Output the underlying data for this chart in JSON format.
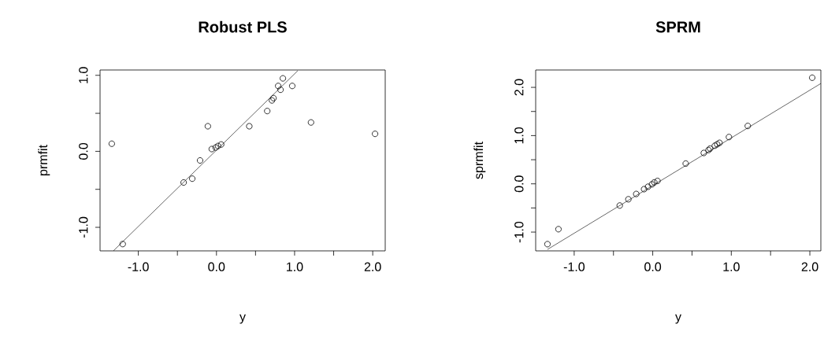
{
  "chart_data": [
    {
      "type": "scatter",
      "title": "Robust PLS",
      "xlabel": "y",
      "ylabel": "prmfit",
      "xlim": [
        -1.49,
        2.16
      ],
      "ylim": [
        -1.31,
        1.07
      ],
      "xticks": [
        {
          "value": -1.0,
          "label": "-1.0"
        },
        {
          "value": -0.5,
          "label": null
        },
        {
          "value": 0.0,
          "label": "0.0"
        },
        {
          "value": 0.5,
          "label": null
        },
        {
          "value": 1.0,
          "label": "1.0"
        },
        {
          "value": 1.5,
          "label": null
        },
        {
          "value": 2.0,
          "label": "2.0"
        }
      ],
      "yticks": [
        {
          "value": -1.0,
          "label": "-1.0"
        },
        {
          "value": -0.5,
          "label": null
        },
        {
          "value": 0.0,
          "label": "0.0"
        },
        {
          "value": 0.5,
          "label": null
        },
        {
          "value": 1.0,
          "label": "1.0"
        }
      ],
      "series": [
        {
          "color": "#000000",
          "marker": "circle",
          "x": [
            -1.34,
            -1.2,
            -0.42,
            -0.31,
            -0.21,
            -0.11,
            -0.06,
            -0.01,
            0.02,
            0.06,
            0.42,
            0.65,
            0.71,
            0.73,
            0.79,
            0.82,
            0.85,
            0.97,
            1.21,
            2.03
          ],
          "values": [
            0.1,
            -1.22,
            -0.41,
            -0.36,
            -0.12,
            0.33,
            0.03,
            0.05,
            0.07,
            0.09,
            0.33,
            0.53,
            0.67,
            0.7,
            0.86,
            0.81,
            0.96,
            0.86,
            0.38,
            0.23
          ]
        },
        {
          "type": "line",
          "color": "#000000",
          "x": [
            -1.32,
            1.04
          ],
          "values": [
            -1.31,
            1.06
          ]
        }
      ]
    },
    {
      "type": "scatter",
      "title": "SPRM",
      "xlabel": "y",
      "ylabel": "sprmfit",
      "xlim": [
        -1.49,
        2.14
      ],
      "ylim": [
        -1.39,
        2.36
      ],
      "xticks": [
        {
          "value": -1.0,
          "label": "-1.0"
        },
        {
          "value": -0.5,
          "label": null
        },
        {
          "value": 0.0,
          "label": "0.0"
        },
        {
          "value": 0.5,
          "label": null
        },
        {
          "value": 1.0,
          "label": "1.0"
        },
        {
          "value": 1.5,
          "label": null
        },
        {
          "value": 2.0,
          "label": "2.0"
        }
      ],
      "yticks": [
        {
          "value": -1.0,
          "label": "-1.0"
        },
        {
          "value": -0.5,
          "label": null
        },
        {
          "value": 0.0,
          "label": "0.0"
        },
        {
          "value": 0.5,
          "label": null
        },
        {
          "value": 1.0,
          "label": "1.0"
        },
        {
          "value": 1.5,
          "label": null
        },
        {
          "value": 2.0,
          "label": "2.0"
        }
      ],
      "series": [
        {
          "color": "#000000",
          "marker": "circle",
          "x": [
            -1.34,
            -1.2,
            -0.42,
            -0.31,
            -0.21,
            -0.11,
            -0.06,
            -0.01,
            0.02,
            0.06,
            0.42,
            0.65,
            0.71,
            0.73,
            0.79,
            0.82,
            0.85,
            0.97,
            1.21,
            2.03
          ],
          "values": [
            -1.25,
            -0.94,
            -0.45,
            -0.32,
            -0.21,
            -0.11,
            -0.06,
            -0.01,
            0.03,
            0.06,
            0.42,
            0.64,
            0.7,
            0.73,
            0.79,
            0.82,
            0.85,
            0.97,
            1.2,
            2.2
          ]
        },
        {
          "type": "line",
          "color": "#000000",
          "x": [
            -1.34,
            2.14
          ],
          "values": [
            -1.36,
            2.08
          ]
        }
      ]
    }
  ]
}
